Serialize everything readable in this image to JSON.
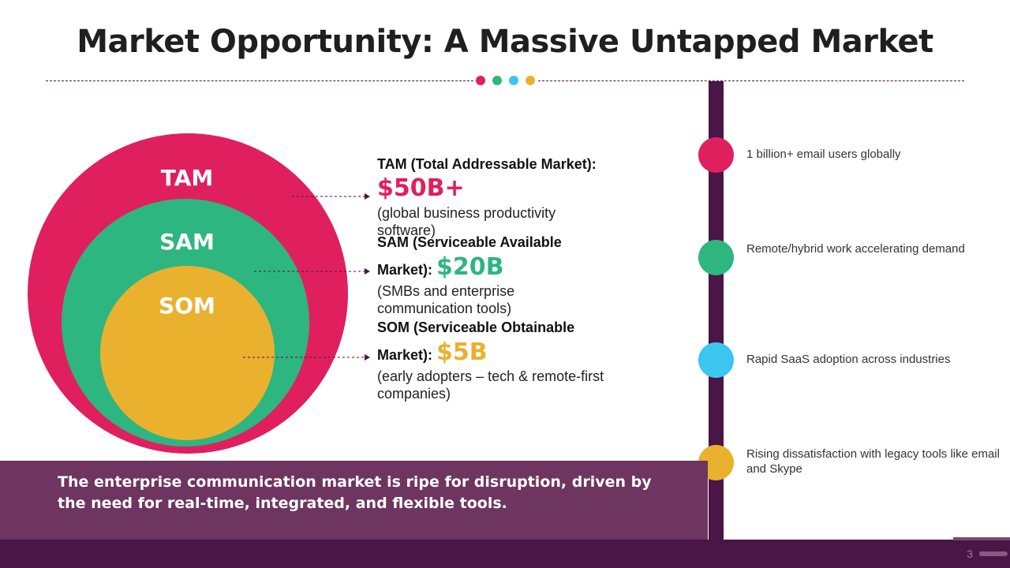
{
  "title": "Market Opportunity: A Massive Untapped Market",
  "colors": {
    "primary_dark": "#4a1547",
    "pink": "#e01f5f",
    "green": "#2db67f",
    "blue": "#3cc6ef",
    "yellow": "#eab12f",
    "banner": "#6d355f"
  },
  "circles": [
    {
      "label": "TAM",
      "color": "#e01f5f"
    },
    {
      "label": "SAM",
      "color": "#2db67f"
    },
    {
      "label": "SOM",
      "color": "#eab12f"
    }
  ],
  "markets": [
    {
      "heading": "TAM (Total Addressable Market):",
      "value": "$50B+",
      "description": "(global business productivity software)"
    },
    {
      "heading": "SAM (Serviceable Available Market):",
      "value": "$20B",
      "description": "(SMBs and enterprise communication tools)"
    },
    {
      "heading": "SOM (Serviceable Obtainable Market):",
      "value": "$5B",
      "description": "(early adopters – tech & remote-first companies)"
    }
  ],
  "timeline": [
    {
      "text": "1 billion+ email users globally",
      "color": "#e01f5f"
    },
    {
      "text": "Remote/hybrid work accelerating demand",
      "color": "#2db67f"
    },
    {
      "text": "Rapid SaaS adoption across industries",
      "color": "#3cc6ef"
    },
    {
      "text": "Rising dissatisfaction with legacy tools like email and Skype",
      "color": "#eab12f"
    }
  ],
  "banner_text": "The enterprise communication market is ripe for disruption, driven by the need for real-time, integrated, and flexible tools.",
  "page_number": "3"
}
